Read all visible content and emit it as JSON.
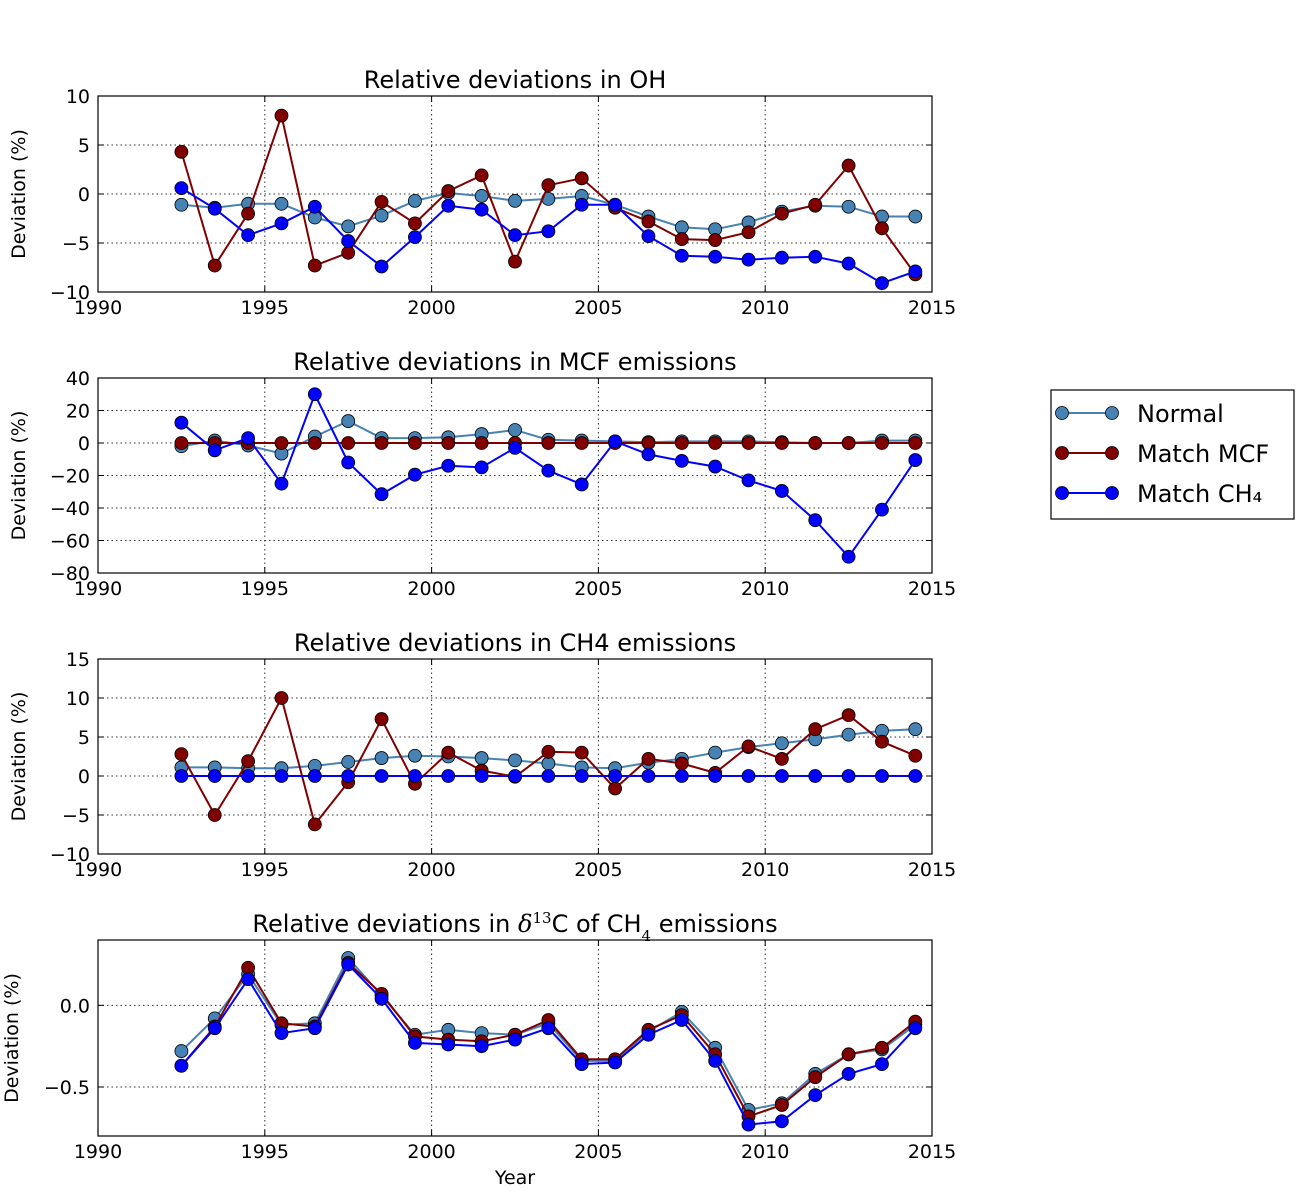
{
  "legend": {
    "placement": "right-outside",
    "entries": [
      "Normal",
      "Match MCF",
      "Match CH₄"
    ]
  },
  "colors": {
    "Normal": "#4682b4",
    "Match MCF": "#800000",
    "Match CH₄": "#0000ff"
  },
  "chart_data": [
    {
      "type": "line",
      "title": "Relative deviations in OH",
      "xlabel": "",
      "ylabel": "Deviation (%)",
      "xlim": [
        1990,
        2015
      ],
      "ylim": [
        -10,
        10
      ],
      "xticks": [
        1990,
        1995,
        2000,
        2005,
        2010,
        2015
      ],
      "yticks": [
        -10,
        -5,
        0,
        5,
        10
      ],
      "ytick_labels": [
        "−10",
        "−5",
        "0",
        "5",
        "10"
      ],
      "grid": true,
      "x": [
        1992.5,
        1993.5,
        1994.5,
        1995.5,
        1996.5,
        1997.5,
        1998.5,
        1999.5,
        2000.5,
        2001.5,
        2002.5,
        2003.5,
        2004.5,
        2005.5,
        2006.5,
        2007.5,
        2008.5,
        2009.5,
        2010.5,
        2011.5,
        2012.5,
        2013.5,
        2014.5
      ],
      "series": [
        {
          "name": "Normal",
          "values": [
            -1.1,
            -1.4,
            -1.0,
            -1.0,
            -2.4,
            -3.3,
            -2.2,
            -0.7,
            0.1,
            -0.2,
            -0.7,
            -0.5,
            -0.2,
            -1.1,
            -2.3,
            -3.4,
            -3.6,
            -2.9,
            -1.8,
            -1.2,
            -1.3,
            -2.3,
            -2.3
          ]
        },
        {
          "name": "Match MCF",
          "values": [
            4.3,
            -7.3,
            -2.0,
            8.0,
            -7.3,
            -6.0,
            -0.8,
            -3.0,
            0.3,
            1.9,
            -6.9,
            0.9,
            1.6,
            -1.4,
            -2.8,
            -4.6,
            -4.7,
            -3.9,
            -2.0,
            -1.1,
            2.9,
            -3.5,
            -8.2
          ]
        },
        {
          "name": "Match CH₄",
          "values": [
            0.6,
            -1.5,
            -4.2,
            -3.0,
            -1.3,
            -4.8,
            -7.4,
            -4.4,
            -1.2,
            -1.6,
            -4.2,
            -3.8,
            -1.1,
            -1.1,
            -4.3,
            -6.3,
            -6.4,
            -6.7,
            -6.5,
            -6.4,
            -7.1,
            -9.1,
            -7.9
          ]
        }
      ]
    },
    {
      "type": "line",
      "title": "Relative deviations in MCF emissions",
      "xlabel": "",
      "ylabel": "Deviation (%)",
      "xlim": [
        1990,
        2015
      ],
      "ylim": [
        -80,
        40
      ],
      "xticks": [
        1990,
        1995,
        2000,
        2005,
        2010,
        2015
      ],
      "yticks": [
        -80,
        -60,
        -40,
        -20,
        0,
        20,
        40
      ],
      "ytick_labels": [
        "−80",
        "−60",
        "−40",
        "−20",
        "0",
        "20",
        "40"
      ],
      "grid": true,
      "x": [
        1992.5,
        1993.5,
        1994.5,
        1995.5,
        1996.5,
        1997.5,
        1998.5,
        1999.5,
        2000.5,
        2001.5,
        2002.5,
        2003.5,
        2004.5,
        2005.5,
        2006.5,
        2007.5,
        2008.5,
        2009.5,
        2010.5,
        2011.5,
        2012.5,
        2013.5,
        2014.5
      ],
      "series": [
        {
          "name": "Normal",
          "values": [
            -2.0,
            1.5,
            -1.5,
            -6.5,
            4.0,
            13.5,
            3.0,
            3.0,
            3.5,
            5.5,
            8.0,
            2.0,
            1.5,
            1.0,
            0.5,
            1.0,
            1.0,
            1.0,
            0.5,
            0.0,
            0.0,
            1.5,
            1.5
          ]
        },
        {
          "name": "Match MCF",
          "values": [
            0,
            0,
            0,
            0,
            0,
            0,
            0,
            0,
            0,
            0,
            0,
            0,
            0,
            0,
            0,
            0,
            0,
            0,
            0,
            0,
            0,
            0,
            0
          ]
        },
        {
          "name": "Match CH₄",
          "values": [
            12.5,
            -4.5,
            3.0,
            -25.0,
            30.0,
            -12.0,
            -31.5,
            -19.5,
            -14.0,
            -15.0,
            -3.0,
            -17.0,
            -25.5,
            1.0,
            -7.0,
            -11.0,
            -14.5,
            -23.0,
            -29.5,
            -47.5,
            -70.0,
            -41.0,
            -10.5
          ]
        }
      ]
    },
    {
      "type": "line",
      "title": "Relative deviations in CH4 emissions",
      "xlabel": "",
      "ylabel": "Deviation (%)",
      "xlim": [
        1990,
        2015
      ],
      "ylim": [
        -10,
        15
      ],
      "xticks": [
        1990,
        1995,
        2000,
        2005,
        2010,
        2015
      ],
      "yticks": [
        -10,
        -5,
        0,
        5,
        10,
        15
      ],
      "ytick_labels": [
        "−10",
        "−5",
        "0",
        "5",
        "10",
        "15"
      ],
      "grid": true,
      "x": [
        1992.5,
        1993.5,
        1994.5,
        1995.5,
        1996.5,
        1997.5,
        1998.5,
        1999.5,
        2000.5,
        2001.5,
        2002.5,
        2003.5,
        2004.5,
        2005.5,
        2006.5,
        2007.5,
        2008.5,
        2009.5,
        2010.5,
        2011.5,
        2012.5,
        2013.5,
        2014.5
      ],
      "series": [
        {
          "name": "Normal",
          "values": [
            1.1,
            1.1,
            1.0,
            1.0,
            1.3,
            1.8,
            2.3,
            2.6,
            2.5,
            2.3,
            2.0,
            1.6,
            1.1,
            1.0,
            1.7,
            2.2,
            3.0,
            3.7,
            4.2,
            4.7,
            5.3,
            5.8,
            6.0
          ]
        },
        {
          "name": "Match MCF",
          "values": [
            2.8,
            -5.0,
            1.9,
            10.0,
            -6.2,
            -0.8,
            7.3,
            -1.0,
            3.0,
            0.7,
            -0.1,
            3.1,
            3.0,
            -1.6,
            2.2,
            1.6,
            0.4,
            3.8,
            2.2,
            6.0,
            7.8,
            4.4,
            2.6
          ]
        },
        {
          "name": "Match CH₄",
          "values": [
            0,
            0,
            0,
            0,
            0,
            0,
            0,
            0,
            0,
            0,
            0,
            0,
            0,
            0,
            0,
            0,
            0,
            0,
            0,
            0,
            0,
            0,
            0
          ]
        }
      ]
    },
    {
      "type": "line",
      "title_parts": [
        "Relative deviations in ",
        "δ",
        "13",
        "C of CH",
        "4",
        " emissions"
      ],
      "xlabel": "Year",
      "ylabel": "Deviation (%)",
      "xlim": [
        1990,
        2015
      ],
      "ylim": [
        -0.8,
        0.4
      ],
      "xticks": [
        1990,
        1995,
        2000,
        2005,
        2010,
        2015
      ],
      "yticks": [
        -0.5,
        0.0
      ],
      "ytick_labels": [
        "−0.5",
        "0.0"
      ],
      "grid": true,
      "x": [
        1992.5,
        1993.5,
        1994.5,
        1995.5,
        1996.5,
        1997.5,
        1998.5,
        1999.5,
        2000.5,
        2001.5,
        2002.5,
        2003.5,
        2004.5,
        2005.5,
        2006.5,
        2007.5,
        2008.5,
        2009.5,
        2010.5,
        2011.5,
        2012.5,
        2013.5,
        2014.5
      ],
      "series": [
        {
          "name": "Normal",
          "values": [
            -0.28,
            -0.08,
            0.19,
            -0.12,
            -0.11,
            0.29,
            0.06,
            -0.18,
            -0.15,
            -0.17,
            -0.18,
            -0.11,
            -0.34,
            -0.34,
            -0.16,
            -0.04,
            -0.26,
            -0.64,
            -0.6,
            -0.42,
            -0.3,
            -0.27,
            -0.12
          ]
        },
        {
          "name": "Match MCF",
          "values": [
            -0.37,
            -0.13,
            0.23,
            -0.11,
            -0.13,
            0.26,
            0.07,
            -0.19,
            -0.21,
            -0.22,
            -0.18,
            -0.09,
            -0.33,
            -0.33,
            -0.15,
            -0.06,
            -0.3,
            -0.68,
            -0.61,
            -0.44,
            -0.3,
            -0.26,
            -0.1
          ]
        },
        {
          "name": "Match CH₄",
          "values": [
            -0.37,
            -0.14,
            0.16,
            -0.17,
            -0.14,
            0.25,
            0.04,
            -0.23,
            -0.24,
            -0.25,
            -0.21,
            -0.14,
            -0.36,
            -0.35,
            -0.18,
            -0.09,
            -0.34,
            -0.73,
            -0.71,
            -0.55,
            -0.42,
            -0.36,
            -0.14
          ]
        }
      ]
    }
  ]
}
